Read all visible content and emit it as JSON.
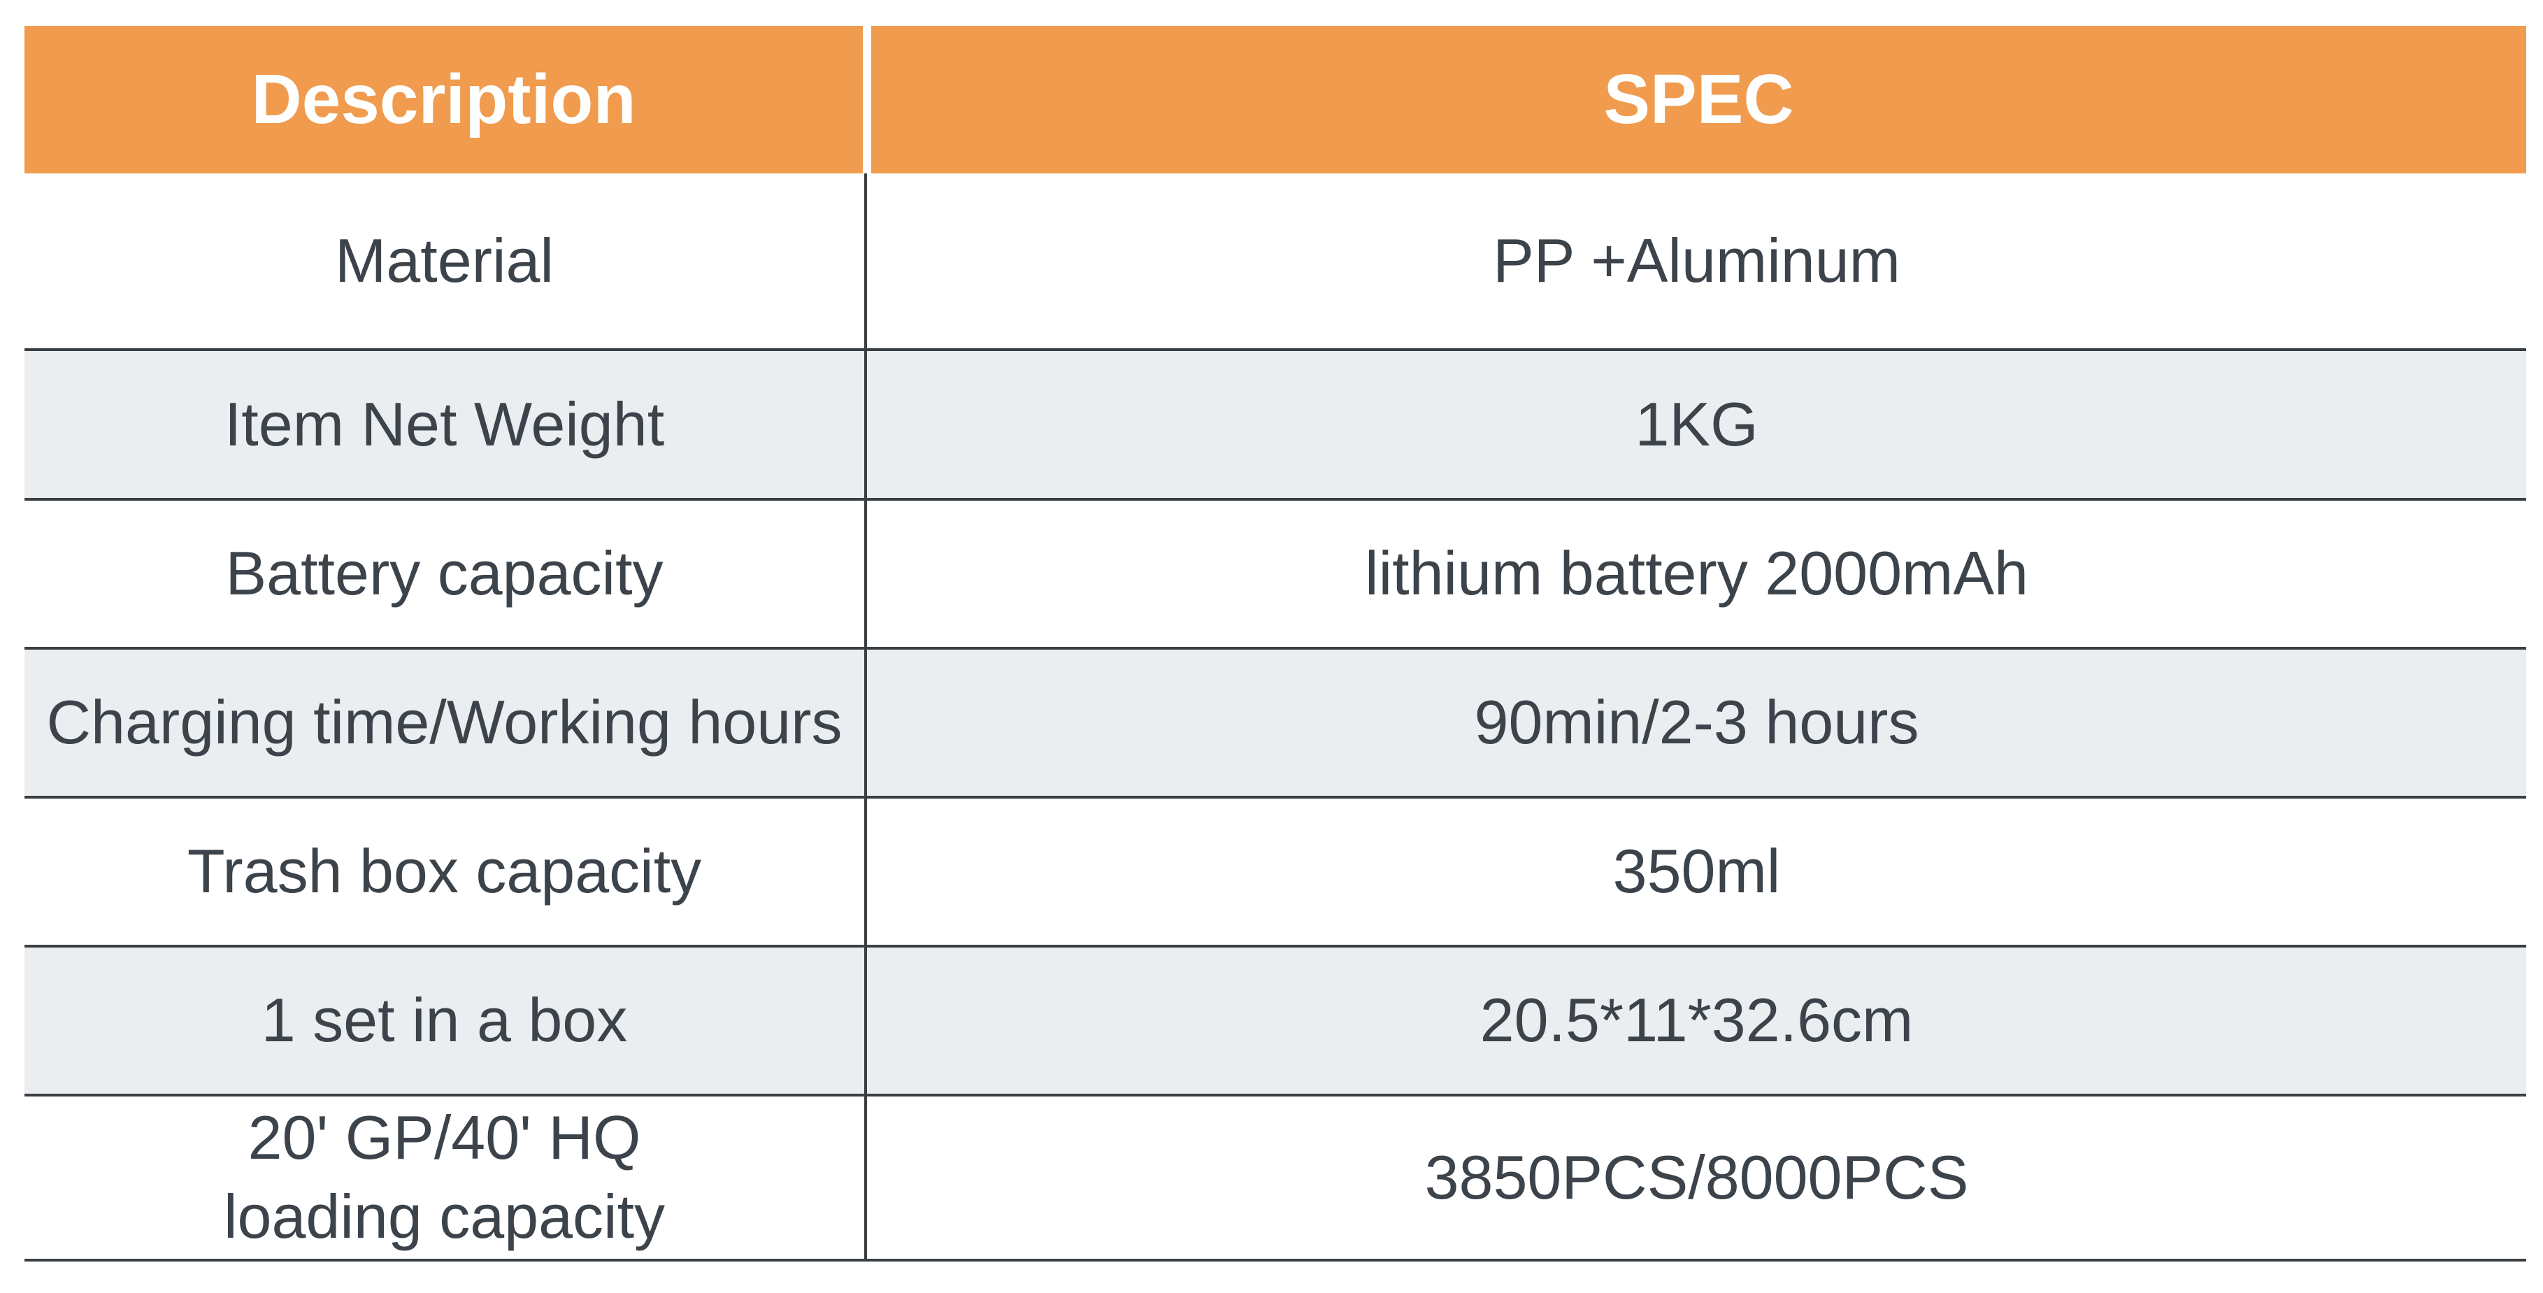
{
  "table": {
    "header": {
      "description": "Description",
      "spec": "SPEC"
    },
    "rows": [
      {
        "description": "Material",
        "spec": "PP +Aluminum"
      },
      {
        "description": "Item Net Weight",
        "spec": "1KG"
      },
      {
        "description": "Battery capacity",
        "spec": "lithium battery  2000mAh"
      },
      {
        "description": "Charging time/Working hours",
        "spec": "90min/2-3 hours"
      },
      {
        "description": "Trash box capacity",
        "spec": "350ml"
      },
      {
        "description": "1 set in a box",
        "spec": "20.5*11*32.6cm"
      },
      {
        "description_line1": "20' GP/40' HQ",
        "description_line2": "loading capacity",
        "spec": "3850PCS/8000PCS"
      }
    ]
  },
  "colors": {
    "header_bg": "#f09b4d",
    "header_text": "#ffffff",
    "body_text": "#3c434a",
    "shaded_row_bg": "#ebeef0",
    "border": "#3a3f44"
  }
}
